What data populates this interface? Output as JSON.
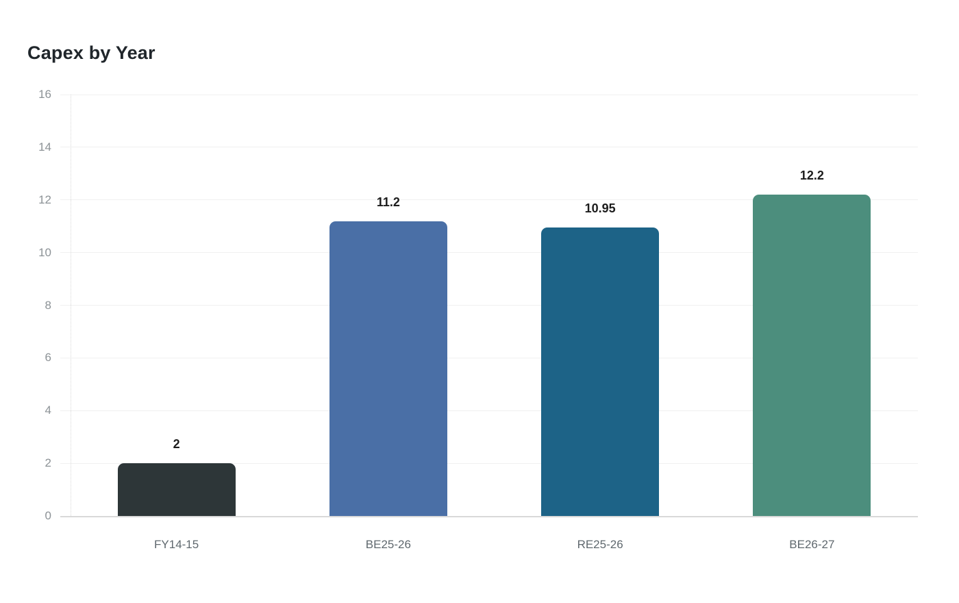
{
  "page": {
    "background": "#ffffff"
  },
  "chart_data": {
    "type": "bar",
    "title": "Capex by Year",
    "categories": [
      "FY14-15",
      "BE25-26",
      "RE25-26",
      "BE26-27"
    ],
    "values": [
      2,
      11.2,
      10.95,
      12.2
    ],
    "value_labels": [
      "2",
      "11.2",
      "10.95",
      "12.2"
    ],
    "bar_colors": [
      "#2d3638",
      "#4a6fa6",
      "#1d6387",
      "#4c8e7d"
    ],
    "xlabel": "",
    "ylabel": "",
    "ylim": [
      0,
      16
    ],
    "yticks": [
      0,
      2,
      4,
      6,
      8,
      10,
      12,
      14,
      16
    ],
    "grid": true,
    "legend": "none",
    "colors": {
      "title": "#20262b",
      "value_label": "#1c1c1c",
      "ytick_label": "#8c9296",
      "xtick_label": "#5f686e",
      "gridline": "#f0f0f0",
      "baseline": "#d9d9d9",
      "axis_dotted": "#d8d8d8"
    }
  }
}
